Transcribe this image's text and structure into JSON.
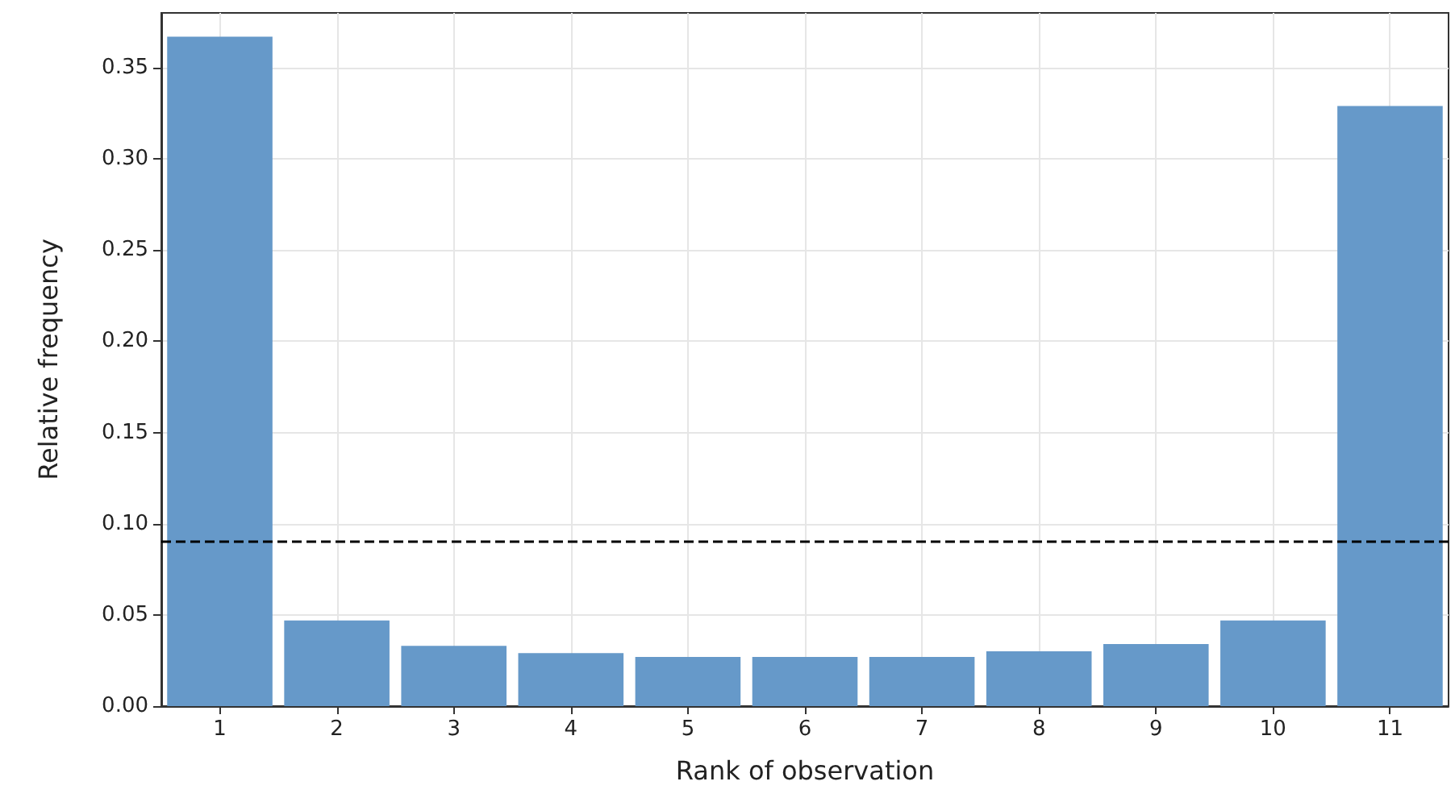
{
  "chart_data": {
    "type": "bar",
    "xlabel": "Rank of observation",
    "ylabel": "Relative frequency",
    "x": [
      1,
      2,
      3,
      4,
      5,
      6,
      7,
      8,
      9,
      10,
      11
    ],
    "values": [
      0.367,
      0.047,
      0.033,
      0.029,
      0.027,
      0.027,
      0.027,
      0.03,
      0.034,
      0.047,
      0.329
    ],
    "color": "#6699c9",
    "xlim": [
      0.5,
      11.5
    ],
    "xticks": [
      1,
      2,
      3,
      4,
      5,
      6,
      7,
      8,
      9,
      10,
      11
    ],
    "ylim": [
      0,
      0.38
    ],
    "yticks": [
      {
        "value": 0,
        "label": "0.00"
      },
      {
        "value": 0.05,
        "label": "0.05"
      },
      {
        "value": 0.1,
        "label": "0.10"
      },
      {
        "value": 0.15,
        "label": "0.15"
      },
      {
        "value": 0.2,
        "label": "0.20"
      },
      {
        "value": 0.25,
        "label": "0.25"
      },
      {
        "value": 0.3,
        "label": "0.30"
      },
      {
        "value": 0.35,
        "label": "0.35"
      }
    ],
    "ref_lines": [
      {
        "axis": "y",
        "value": 0.0909,
        "color": "#000000",
        "line_style": "dashed"
      }
    ],
    "grid": true
  }
}
